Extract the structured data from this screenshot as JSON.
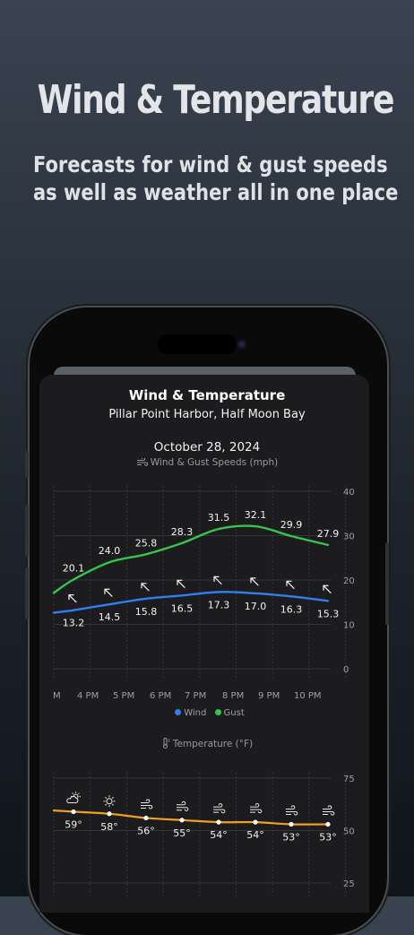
{
  "hero": {
    "title": "Wind & Temperature",
    "subtitle_line1": "Forecasts for wind & gust speeds",
    "subtitle_line2": "as well as weather all in one place"
  },
  "card": {
    "title": "Wind & Temperature",
    "location": "Pillar Point Harbor, Half Moon Bay",
    "date": "October 28, 2024"
  },
  "wind_chart_label": "Wind & Gust Speeds (mph)",
  "temp_chart_label": "Temperature (°F)",
  "legend": {
    "wind": "Wind",
    "gust": "Gust"
  },
  "colors": {
    "wind": "#2f7ff0",
    "gust": "#36c44f",
    "temperature": "#f0a020"
  },
  "chart_data": [
    {
      "type": "line",
      "categories": [
        "M",
        "4 PM",
        "5 PM",
        "6 PM",
        "7 PM",
        "8 PM",
        "9 PM",
        "10 PM"
      ],
      "ylim": [
        0,
        40
      ],
      "yticks": [
        0,
        10,
        20,
        30,
        40
      ],
      "series": [
        {
          "name": "Wind",
          "values": [
            13.2,
            14.5,
            15.8,
            16.5,
            17.3,
            17.0,
            16.3,
            15.3
          ],
          "labels": [
            "13.2",
            "14.5",
            "15.8",
            "16.5",
            "17.3",
            "17.0",
            "16.3",
            "15.3"
          ]
        },
        {
          "name": "Gust",
          "values": [
            20.1,
            24.0,
            25.8,
            28.3,
            31.5,
            32.1,
            29.9,
            27.9
          ],
          "labels": [
            "20.1",
            "24.0",
            "25.8",
            "28.3",
            "31.5",
            "32.1",
            "29.9",
            "27.9"
          ]
        }
      ],
      "wind_direction_icons": [
        "arrow-northwest-icon",
        "arrow-northwest-icon",
        "arrow-northwest-icon",
        "arrow-northwest-icon",
        "arrow-northwest-icon",
        "arrow-northwest-icon",
        "arrow-northwest-icon",
        "arrow-northwest-icon"
      ],
      "grid": true
    },
    {
      "type": "line",
      "ylim": [
        25,
        75
      ],
      "yticks": [
        25,
        50,
        75
      ],
      "series": [
        {
          "name": "Temperature",
          "values": [
            59,
            58,
            56,
            55,
            54,
            54,
            53,
            53
          ],
          "labels": [
            "59°",
            "58°",
            "56°",
            "55°",
            "54°",
            "54°",
            "53°",
            "53°"
          ]
        }
      ],
      "weather_icons": [
        "partly-cloudy-icon",
        "sun-icon",
        "wind-icon",
        "wind-icon",
        "wind-icon",
        "wind-icon",
        "wind-icon",
        "wind-icon"
      ],
      "grid": true
    }
  ]
}
